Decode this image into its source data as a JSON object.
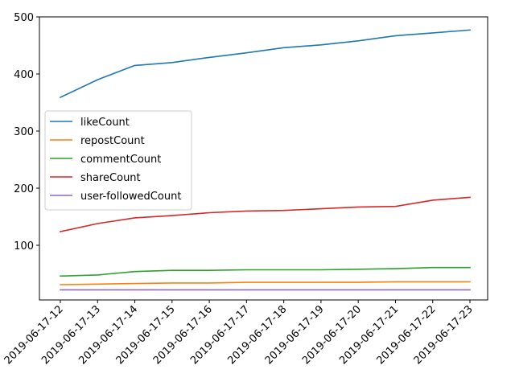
{
  "chart_data": {
    "type": "line",
    "title": "",
    "xlabel": "",
    "ylabel": "",
    "categories": [
      "2019-06-17-12",
      "2019-06-17-13",
      "2019-06-17-14",
      "2019-06-17-15",
      "2019-06-17-16",
      "2019-06-17-17",
      "2019-06-17-18",
      "2019-06-17-19",
      "2019-06-17-20",
      "2019-06-17-21",
      "2019-06-17-22",
      "2019-06-17-23"
    ],
    "yticks": [
      100,
      200,
      300,
      400,
      500
    ],
    "ylim": [
      0,
      500
    ],
    "grid": false,
    "legend_position": "center-left",
    "series": [
      {
        "name": "likeCount",
        "color": "#1f77b4",
        "values": [
          359,
          390,
          415,
          420,
          429,
          437,
          446,
          451,
          458,
          467,
          472,
          477
        ]
      },
      {
        "name": "repostCount",
        "color": "#ff7f0e",
        "values": [
          31,
          32,
          33,
          34,
          34,
          35,
          35,
          35,
          35,
          36,
          36,
          36
        ]
      },
      {
        "name": "commentCount",
        "color": "#2ca02c",
        "values": [
          46,
          48,
          54,
          56,
          56,
          57,
          57,
          57,
          58,
          59,
          61,
          61
        ]
      },
      {
        "name": "shareCount",
        "color": "#d62728",
        "values": [
          124,
          138,
          148,
          152,
          157,
          160,
          161,
          164,
          167,
          168,
          179,
          184
        ]
      },
      {
        "name": "user-followedCount",
        "color": "#9467bd",
        "values": [
          22,
          22,
          22,
          22,
          22,
          22,
          22,
          22,
          22,
          22,
          22,
          22
        ]
      }
    ]
  }
}
